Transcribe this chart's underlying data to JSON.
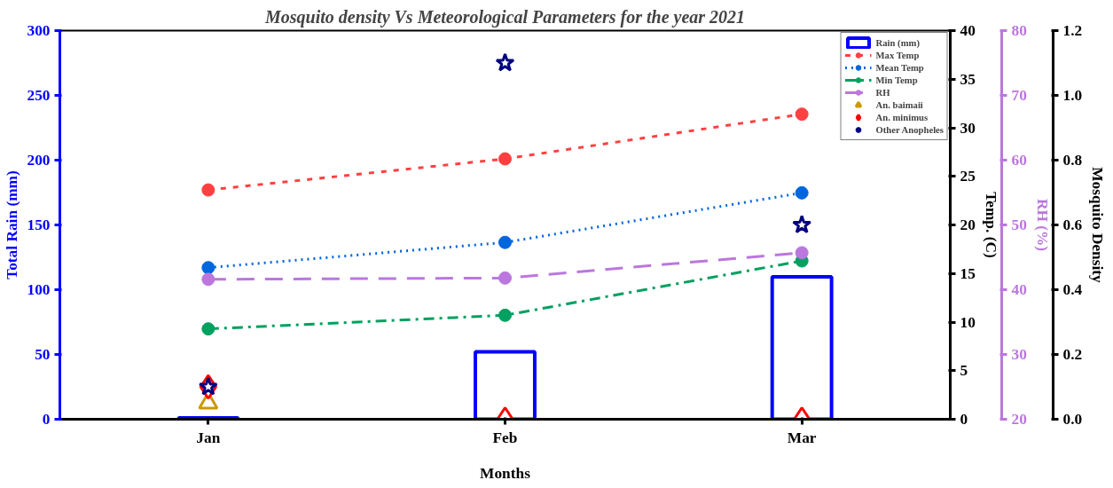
{
  "chart_data": [
    {
      "type": "line",
      "title": "Mosquito density Vs Meteorological Parameters for the year 2021",
      "xlabel": "Months",
      "ylabel": "Total Rain (mm)",
      "y2label": "Temp. (C)",
      "y3label": "RH (%)",
      "categories": [
        "Jan",
        "Feb",
        "Mar"
      ],
      "ylim": [
        0,
        300
      ],
      "yticks": [
        0,
        50,
        100,
        150,
        200,
        250,
        300
      ],
      "y2lim": [
        0,
        40
      ],
      "y2ticks": [
        0,
        5,
        10,
        15,
        20,
        25,
        30,
        35,
        40
      ],
      "y3lim": [
        20,
        80
      ],
      "y3ticks": [
        20,
        30,
        40,
        50,
        60,
        70,
        80
      ],
      "grid": false,
      "legend": "top right",
      "series": [
        {
          "name": "Rain (mm)",
          "type": "bar",
          "color": "#0000ff",
          "values": [
            1,
            52,
            110
          ]
        },
        {
          "name": "Max Temp",
          "axis": "y2",
          "color": "#ff4040",
          "marker": "circle",
          "line_style": "dashed",
          "values": [
            23.6,
            26.8,
            31.4
          ]
        },
        {
          "name": "Mean Temp",
          "axis": "y2",
          "color": "#0066dd",
          "marker": "circle",
          "line_style": "dotted",
          "values": [
            15.6,
            18.2,
            23.3
          ]
        },
        {
          "name": "Min Temp",
          "axis": "y2",
          "color": "#00a060",
          "marker": "circle",
          "line_style": "dashdot",
          "values": [
            9.3,
            10.7,
            16.3
          ]
        },
        {
          "name": "RH",
          "axis": "y3",
          "color": "#bb77dd",
          "marker": "circle",
          "line_style": "longdash",
          "values": [
            41.6,
            41.8,
            45.7
          ]
        }
      ]
    },
    {
      "type": "scatter",
      "ylabel": "Mosquito Density",
      "tick_labels": "y",
      "ylim": [
        0,
        1.2
      ],
      "yticks": [
        {
          "value": 0,
          "label": "0.0"
        },
        {
          "value": 0.2,
          "label": "0.2"
        },
        {
          "value": 0.4,
          "label": "0.4"
        },
        {
          "value": 0.6,
          "label": "0.6"
        },
        {
          "value": 0.8,
          "label": "0.8"
        },
        {
          "value": 1,
          "label": "1.0"
        },
        {
          "value": 1.2,
          "label": "1.2"
        }
      ],
      "legend": "top right",
      "series": [
        {
          "name": "An. baimaii",
          "color": "#cc9900",
          "marker": "triangle",
          "values": [
            0.05,
            null,
            null
          ]
        },
        {
          "name": "An. minimus",
          "color": "#ff0000",
          "marker": "diamond",
          "values": [
            0.1,
            0,
            0
          ]
        },
        {
          "name": "Other Anopheles",
          "color": "#000080",
          "marker": "star",
          "values": [
            0.1,
            1.1,
            0.6
          ]
        }
      ]
    }
  ]
}
